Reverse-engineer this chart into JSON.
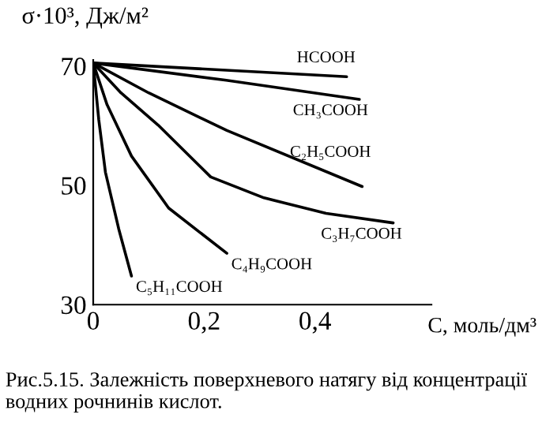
{
  "chart_data": {
    "type": "line",
    "ylabel": "σ·10³, Дж/м²",
    "xlabel": "C, моль/дм³",
    "xlim": [
      0,
      0.61
    ],
    "ylim": [
      30,
      71
    ],
    "xticks": [
      0,
      {
        "value": 0.2,
        "label": "0,2"
      },
      {
        "value": 0.4,
        "label": "0,4"
      }
    ],
    "yticks": [
      30,
      50,
      70
    ],
    "grid": false,
    "legend": false,
    "marker": "none",
    "line_style": "solid",
    "series": [
      {
        "name": "HCOOH",
        "color": "#000000",
        "x": [
          0,
          0.457
        ],
        "values": [
          70.5,
          68.2
        ]
      },
      {
        "name": "CH₃COOH",
        "color": "#000000",
        "x": [
          0,
          0.24,
          0.48
        ],
        "values": [
          70.5,
          67.6,
          64.4
        ]
      },
      {
        "name": "C₂H₅COOH",
        "color": "#000000",
        "x": [
          0,
          0.1,
          0.241,
          0.485
        ],
        "values": [
          70.5,
          65.5,
          59.2,
          49.8
        ]
      },
      {
        "name": "C₃H₇COOH",
        "color": "#000000",
        "x": [
          0,
          0.05,
          0.117,
          0.212,
          0.308,
          0.42,
          0.541
        ],
        "values": [
          70.5,
          65.5,
          60.1,
          51.4,
          47.9,
          45.3,
          43.7
        ]
      },
      {
        "name": "C₄H₉COOH",
        "color": "#000000",
        "x": [
          0,
          0.025,
          0.069,
          0.136,
          0.241
        ],
        "values": [
          70.5,
          63.5,
          54.9,
          46.2,
          38.6
        ]
      },
      {
        "name": "C₅H₁₁COOH",
        "color": "#000000",
        "x": [
          0,
          0.01,
          0.022,
          0.046,
          0.069
        ],
        "values": [
          70.5,
          61,
          52.2,
          42.7,
          34.8
        ]
      }
    ],
    "annotations": [
      "Рис.5.15. Залежність поверхневого натягу від концентрації водних рочнинів кислот."
    ]
  }
}
